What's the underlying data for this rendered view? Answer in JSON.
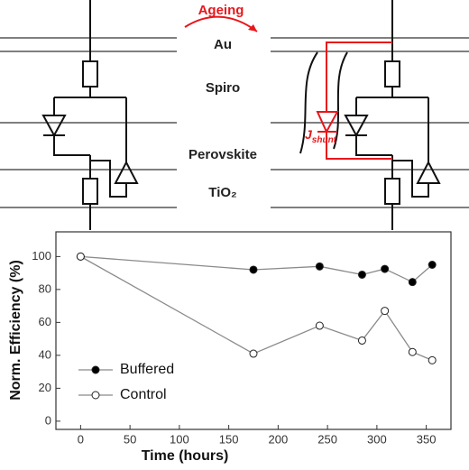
{
  "diagram": {
    "arrow_label": "Ageing",
    "layers": [
      "Au",
      "Spiro",
      "Perovskite",
      "TiO₂"
    ],
    "shunt_symbol": "J",
    "shunt_subscript": "shunt"
  },
  "chart_data": {
    "type": "line",
    "x": [
      0,
      175,
      242,
      285,
      308,
      336,
      356
    ],
    "series": [
      {
        "name": "Buffered",
        "color": "#000000",
        "values": [
          100,
          92,
          94,
          89,
          92.5,
          84.5,
          95
        ]
      },
      {
        "name": "Control",
        "color": "#ffffff",
        "values": [
          100,
          41,
          58,
          49,
          67,
          42,
          37
        ]
      }
    ],
    "xlabel": "Time (hours)",
    "ylabel": "Norm. Efficiency (%)",
    "xlim": [
      -25,
      375
    ],
    "xticks": [
      0,
      50,
      100,
      150,
      200,
      250,
      300,
      350
    ],
    "ylim": [
      -5,
      115
    ],
    "yticks": [
      0,
      20,
      40,
      60,
      80,
      100
    ],
    "line_color": "#8a8a8a",
    "legend": "lower left"
  }
}
